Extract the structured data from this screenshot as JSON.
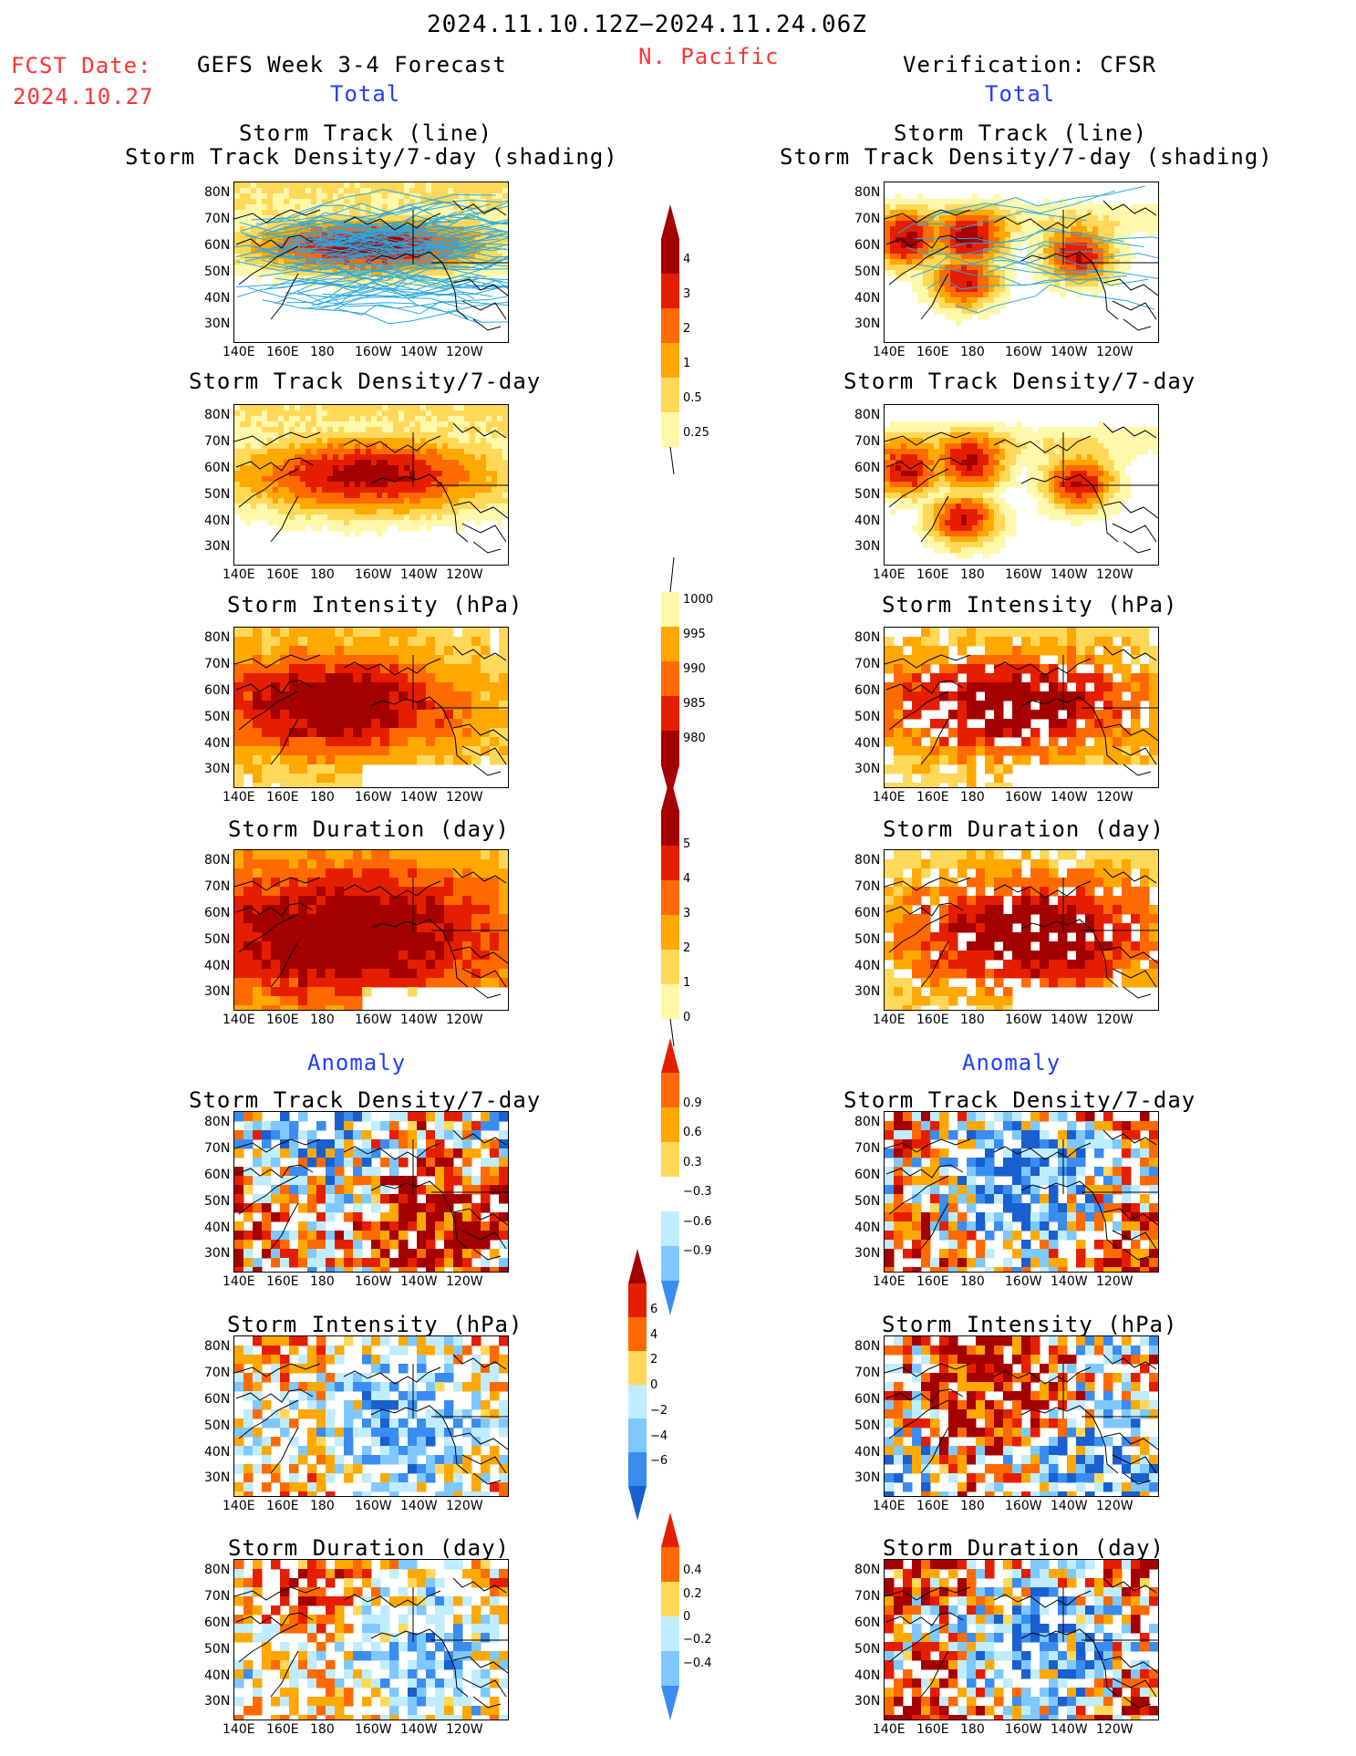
{
  "header": {
    "date_range": "2024.11.10.12Z−2024.11.24.06Z",
    "region": "N. Pacific",
    "fcst_label": "FCST Date:",
    "fcst_date": "2024.10.27",
    "left_title": "GEFS Week 3-4 Forecast",
    "right_title": "Verification: CFSR",
    "total_label": "Total",
    "anomaly_label": "Anomaly"
  },
  "axes": {
    "lat_ticks": [
      "80N",
      "70N",
      "60N",
      "50N",
      "40N",
      "30N"
    ],
    "lon_ticks": [
      "140E",
      "160E",
      "180",
      "160W",
      "140W",
      "120W"
    ]
  },
  "panel_titles": {
    "track_line": "Storm Track (line)",
    "track_shading": "Storm Track Density/7-day (shading)",
    "track_density": "Storm Track Density/7-day",
    "intensity": "Storm Intensity (hPa)",
    "duration": "Storm Duration (day)"
  },
  "colorbars": {
    "density_total": [
      "0.25",
      "0.5",
      "1",
      "2",
      "3",
      "4"
    ],
    "intensity_total": [
      "1000",
      "995",
      "990",
      "985",
      "980"
    ],
    "duration_total": [
      "0",
      "1",
      "2",
      "3",
      "4",
      "5"
    ],
    "density_anom": [
      "0.9",
      "0.6",
      "0.3",
      "−0.3",
      "−0.6",
      "−0.9"
    ],
    "intensity_anom": [
      "6",
      "4",
      "2",
      "0",
      "−2",
      "−4",
      "−6"
    ],
    "duration_anom": [
      "0.4",
      "0.2",
      "0",
      "−0.2",
      "−0.4"
    ]
  },
  "colors": {
    "warm": [
      "#fff7aa",
      "#ffd85a",
      "#ffa800",
      "#ff6a00",
      "#e61e00",
      "#a50000"
    ],
    "cool": [
      "#c0ecff",
      "#7ec8ff",
      "#3a8cf0",
      "#1a5fd0"
    ],
    "track_line": "#2aa8e0",
    "text_red": "#ff3333",
    "text_blue": "#1f3fff"
  },
  "chart_data": {
    "type": "heatmap",
    "region": "N. Pacific",
    "lon_range": [
      "140E",
      "120W"
    ],
    "lat_range": [
      "25N",
      "85N"
    ],
    "panels": [
      {
        "column": "GEFS Week 3-4 Forecast",
        "section": "Total",
        "field": "Storm Track Density/7-day (shading) + Storm Track (line)",
        "max_level": "4"
      },
      {
        "column": "GEFS Week 3-4 Forecast",
        "section": "Total",
        "field": "Storm Track Density/7-day",
        "max_level": "4"
      },
      {
        "column": "GEFS Week 3-4 Forecast",
        "section": "Total",
        "field": "Storm Intensity (hPa)",
        "min_level": "980"
      },
      {
        "column": "GEFS Week 3-4 Forecast",
        "section": "Total",
        "field": "Storm Duration (day)",
        "max_level": "5"
      },
      {
        "column": "Verification: CFSR",
        "section": "Total",
        "field": "Storm Track Density/7-day (shading) + Storm Track (line)",
        "max_level": "4"
      },
      {
        "column": "Verification: CFSR",
        "section": "Total",
        "field": "Storm Track Density/7-day",
        "max_level": "4"
      },
      {
        "column": "Verification: CFSR",
        "section": "Total",
        "field": "Storm Intensity (hPa)",
        "min_level": "980"
      },
      {
        "column": "Verification: CFSR",
        "section": "Total",
        "field": "Storm Duration (day)",
        "max_level": "5"
      },
      {
        "column": "GEFS Week 3-4 Forecast",
        "section": "Anomaly",
        "field": "Storm Track Density/7-day",
        "range": [
          "−0.9",
          "0.9"
        ]
      },
      {
        "column": "GEFS Week 3-4 Forecast",
        "section": "Anomaly",
        "field": "Storm Intensity (hPa)",
        "range": [
          "−6",
          "6"
        ]
      },
      {
        "column": "GEFS Week 3-4 Forecast",
        "section": "Anomaly",
        "field": "Storm Duration (day)",
        "range": [
          "−0.4",
          "0.4"
        ]
      },
      {
        "column": "Verification: CFSR",
        "section": "Anomaly",
        "field": "Storm Track Density/7-day",
        "range": [
          "−0.9",
          "0.9"
        ]
      },
      {
        "column": "Verification: CFSR",
        "section": "Anomaly",
        "field": "Storm Intensity (hPa)",
        "range": [
          "−6",
          "6"
        ]
      },
      {
        "column": "Verification: CFSR",
        "section": "Anomaly",
        "field": "Storm Duration (day)",
        "range": [
          "−0.4",
          "0.4"
        ]
      }
    ]
  }
}
